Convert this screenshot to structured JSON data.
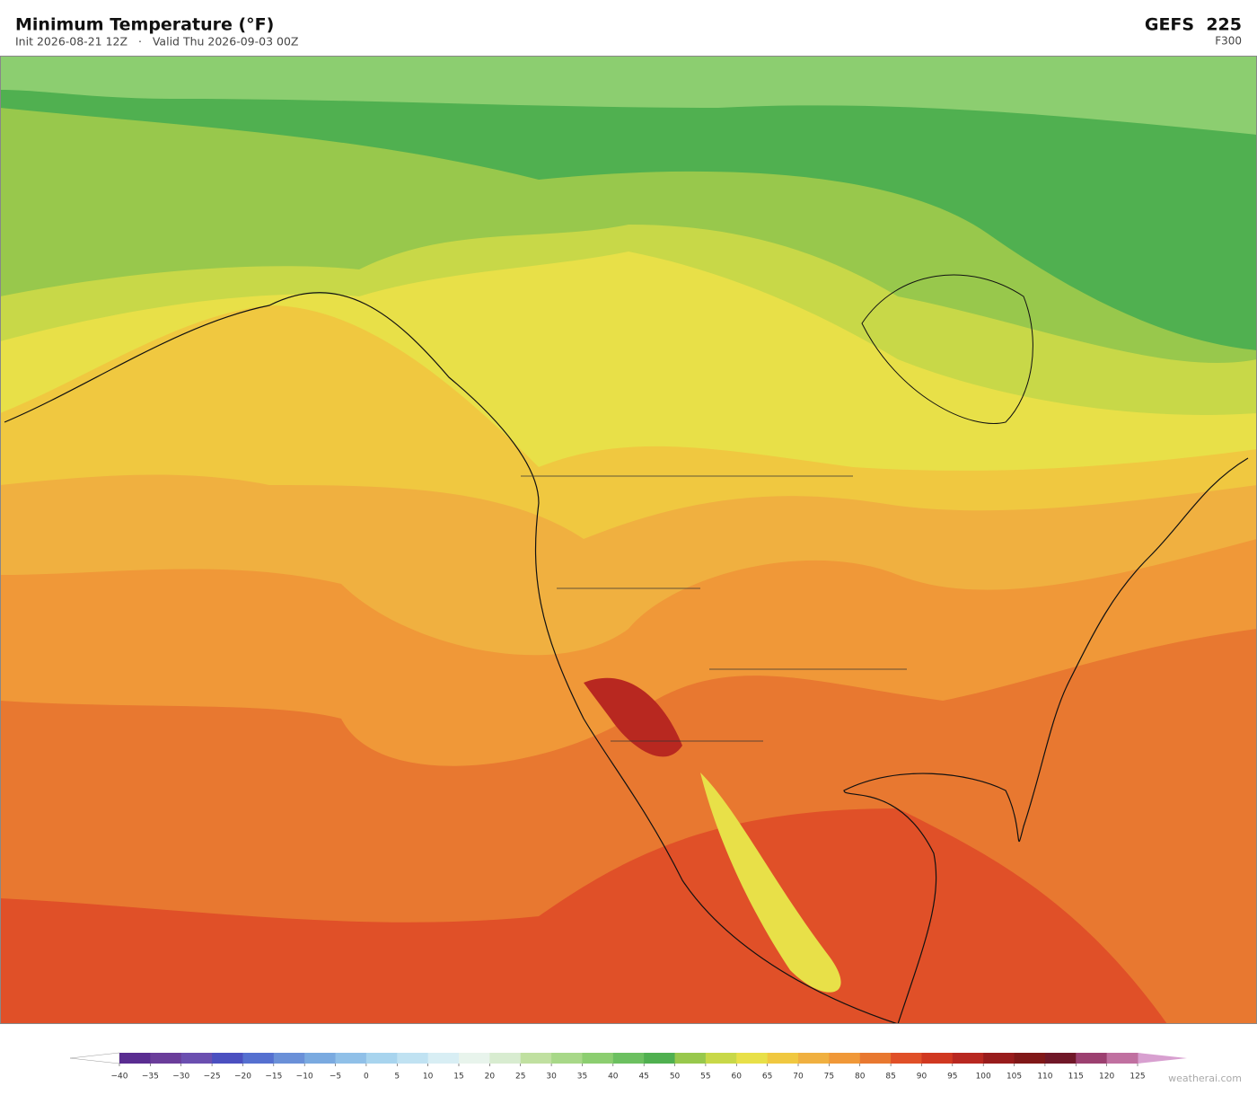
{
  "header": {
    "title": "Minimum Temperature  (°F)",
    "subtitle": "Init 2026-08-21 12Z   ·   Valid Thu 2026-09-03 00Z",
    "model": "GEFS  225",
    "forecast_hour": "F300"
  },
  "colorbar": {
    "ticks": [
      {
        "value": -40,
        "label": "−40"
      },
      {
        "value": -35,
        "label": "−35"
      },
      {
        "value": -30,
        "label": "−30"
      },
      {
        "value": -25,
        "label": "−25"
      },
      {
        "value": -20,
        "label": "−20"
      },
      {
        "value": -15,
        "label": "−15"
      },
      {
        "value": -10,
        "label": "−10"
      },
      {
        "value": -5,
        "label": "−5"
      },
      0,
      5,
      10,
      15,
      20,
      25,
      30,
      35,
      40,
      45,
      50,
      55,
      60,
      65,
      70,
      75,
      80,
      85,
      90,
      95,
      100,
      105,
      110,
      115,
      120,
      125
    ],
    "colors": [
      "#5a2d91",
      "#6a3d9a",
      "#6b4fb0",
      "#4b50c0",
      "#5570d0",
      "#6a90d8",
      "#7aaae0",
      "#90c0e8",
      "#a8d4ee",
      "#c0e2f2",
      "#d8eef4",
      "#e8f4ec",
      "#d8ecd0",
      "#c0e0a0",
      "#a8d888",
      "#8cce70",
      "#6cc060",
      "#50b050",
      "#98c84c",
      "#c8d848",
      "#e8e048",
      "#f0c840",
      "#f0b040",
      "#f09838",
      "#e87830",
      "#e05028",
      "#d03820",
      "#b82820",
      "#981c1c",
      "#801818",
      "#701828",
      "#9c4070",
      "#c070a0"
    ],
    "under_color": "#ffffff",
    "over_color": "#d8a0d0"
  },
  "footer": {
    "watermark": "weatherai.com"
  }
}
